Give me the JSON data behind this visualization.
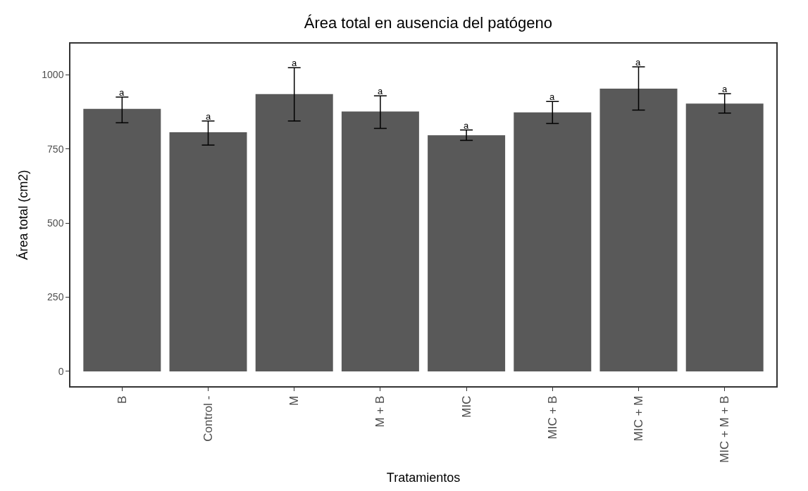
{
  "chart_data": {
    "type": "bar",
    "title": "Área total en ausencia del patógeno",
    "xlabel": "Tratamientos",
    "ylabel": "Área total (cm2)",
    "categories": [
      "B",
      "Control -",
      "M",
      "M + B",
      "MIC",
      "MIC + B",
      "MIC + M",
      "MIC + M + B"
    ],
    "values": [
      885,
      806,
      935,
      876,
      796,
      873,
      953,
      903
    ],
    "errors": [
      [
        838,
        925
      ],
      [
        763,
        844
      ],
      [
        844,
        1024
      ],
      [
        819,
        929
      ],
      [
        779,
        814
      ],
      [
        836,
        910
      ],
      [
        881,
        1027
      ],
      [
        871,
        936
      ]
    ],
    "color": "#595959",
    "ylim": [
      -50,
      1105
    ],
    "yticks": [
      0,
      250,
      500,
      750,
      1000
    ],
    "legend": false,
    "annotations": [
      {
        "text": "a",
        "x": "B",
        "y": 925
      },
      {
        "text": "a",
        "x": "Control -",
        "y": 844
      },
      {
        "text": "a",
        "x": "M",
        "y": 1024
      },
      {
        "text": "a",
        "x": "M + B",
        "y": 929
      },
      {
        "text": "a",
        "x": "MIC",
        "y": 814
      },
      {
        "text": "a",
        "x": "MIC + B",
        "y": 910
      },
      {
        "text": "a",
        "x": "MIC + M",
        "y": 1027
      },
      {
        "text": "a",
        "x": "MIC + M + B",
        "y": 936
      }
    ]
  }
}
